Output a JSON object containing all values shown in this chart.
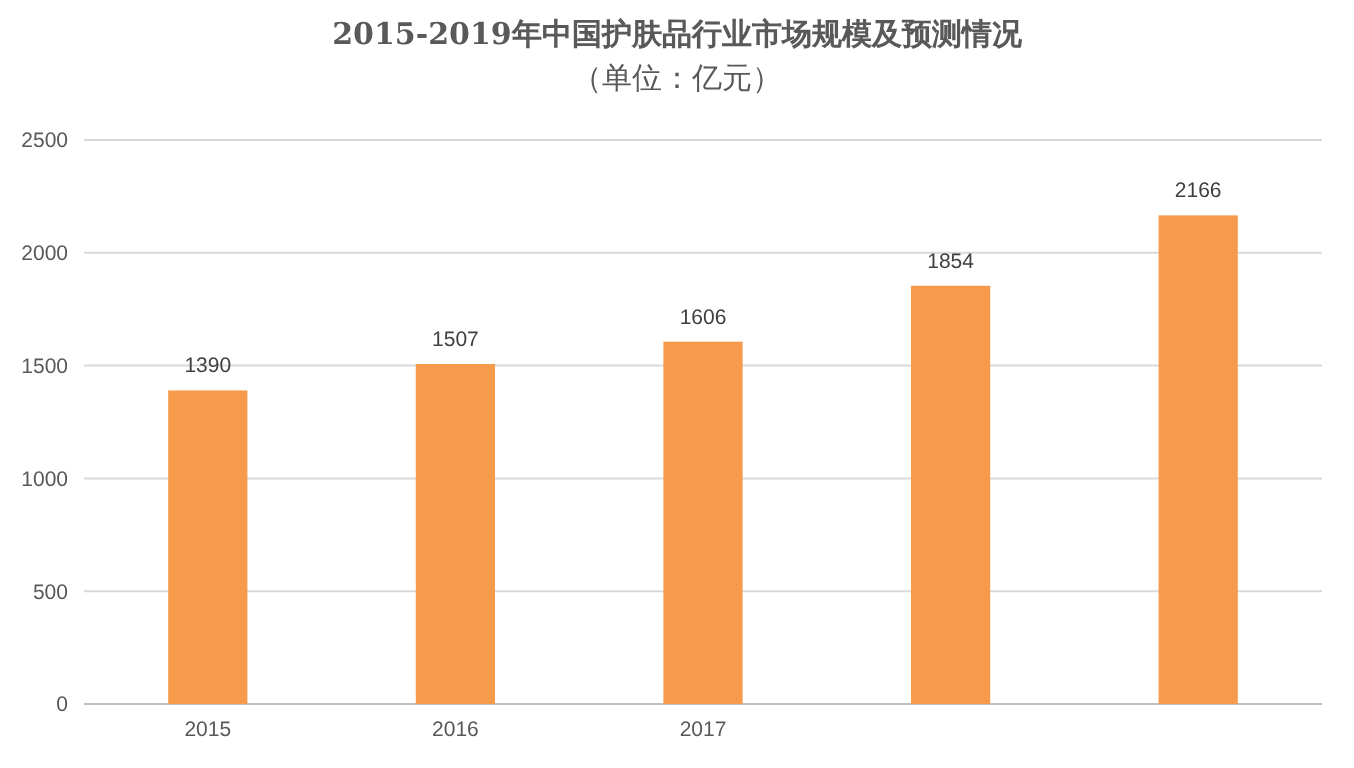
{
  "chart_data": {
    "type": "bar",
    "title": "2015-2019年中国护肤品行业市场规模及预测情况",
    "subtitle": "（单位：亿元）",
    "categories": [
      "2015",
      "2016",
      "2017",
      null,
      null
    ],
    "values": [
      1390,
      1507,
      1606,
      1854,
      2166
    ],
    "color": "#f59b4b",
    "ylim": [
      0,
      2500
    ],
    "yticks": [
      0,
      500,
      1000,
      1500,
      2000,
      2500
    ],
    "grid": "y",
    "data_labels": true
  }
}
